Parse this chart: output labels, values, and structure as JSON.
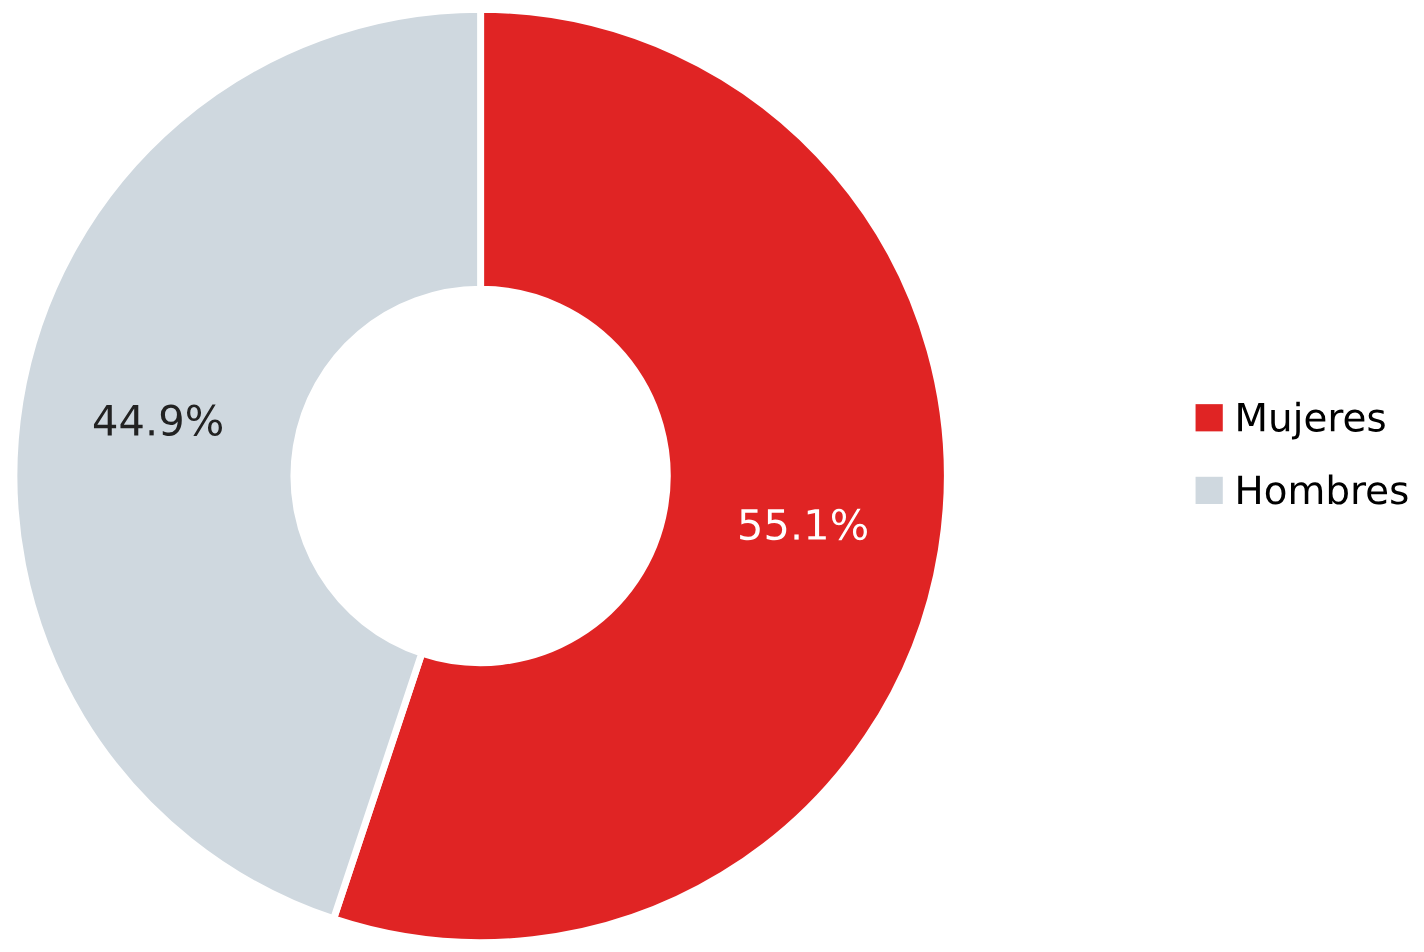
{
  "chart_data": {
    "type": "donut",
    "categories": [
      "Mujeres",
      "Hombres"
    ],
    "values": [
      55.1,
      44.9
    ],
    "colors": [
      "#e02424",
      "#cfd8df"
    ],
    "value_labels": [
      "55.1%",
      "44.9%"
    ],
    "legend": "right"
  }
}
